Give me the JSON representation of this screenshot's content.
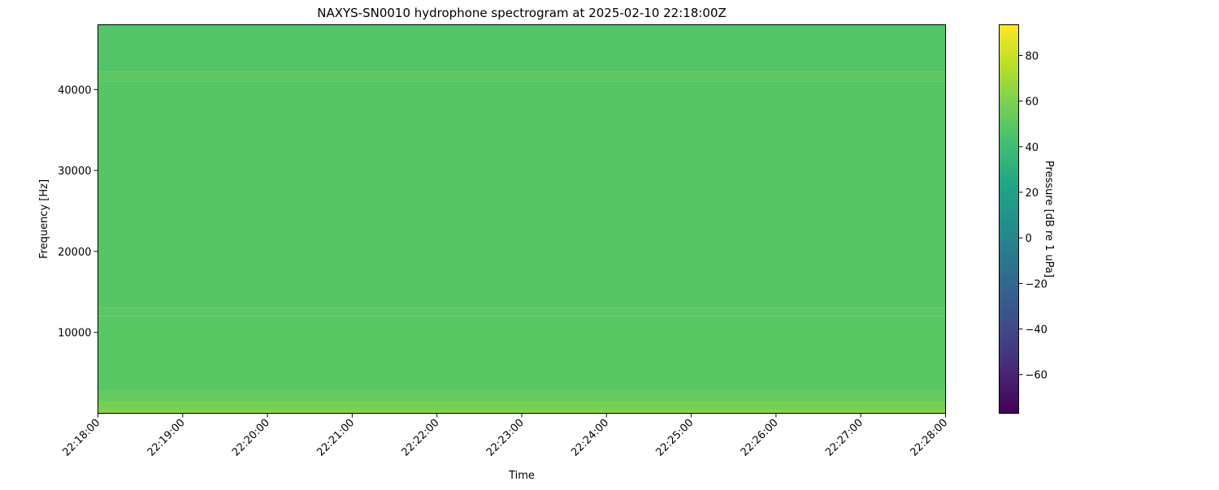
{
  "chart_data": {
    "type": "heatmap",
    "title": "NAXYS-SN0010 hydrophone spectrogram at 2025-02-10 22:18:00Z",
    "xlabel": "Time",
    "ylabel": "Frequency [Hz]",
    "colorbar_label": "Pressure [dB re 1 uPa]",
    "colormap": "viridis",
    "x_ticks": [
      "22:18:00",
      "22:19:00",
      "22:20:00",
      "22:21:00",
      "22:22:00",
      "22:23:00",
      "22:24:00",
      "22:25:00",
      "22:26:00",
      "22:27:00",
      "22:28:00"
    ],
    "xlim": [
      "22:18:00",
      "22:28:00"
    ],
    "y_ticks": [
      10000,
      20000,
      30000,
      40000
    ],
    "ylim": [
      0,
      48000
    ],
    "colorbar_ticks": [
      -60,
      -40,
      -20,
      0,
      20,
      40,
      60,
      80
    ],
    "clim": [
      -77,
      93.5
    ],
    "grid": false,
    "bands": [
      {
        "f_min": 0,
        "f_max": 500,
        "db": 62
      },
      {
        "f_min": 500,
        "f_max": 1500,
        "db": 58
      },
      {
        "f_min": 1500,
        "f_max": 2800,
        "db": 53
      },
      {
        "f_min": 2800,
        "f_max": 12000,
        "db": 49
      },
      {
        "f_min": 12000,
        "f_max": 13000,
        "db": 50
      },
      {
        "f_min": 13000,
        "f_max": 41000,
        "db": 48
      },
      {
        "f_min": 41000,
        "f_max": 42200,
        "db": 50
      },
      {
        "f_min": 42200,
        "f_max": 48000,
        "db": 47
      }
    ]
  }
}
